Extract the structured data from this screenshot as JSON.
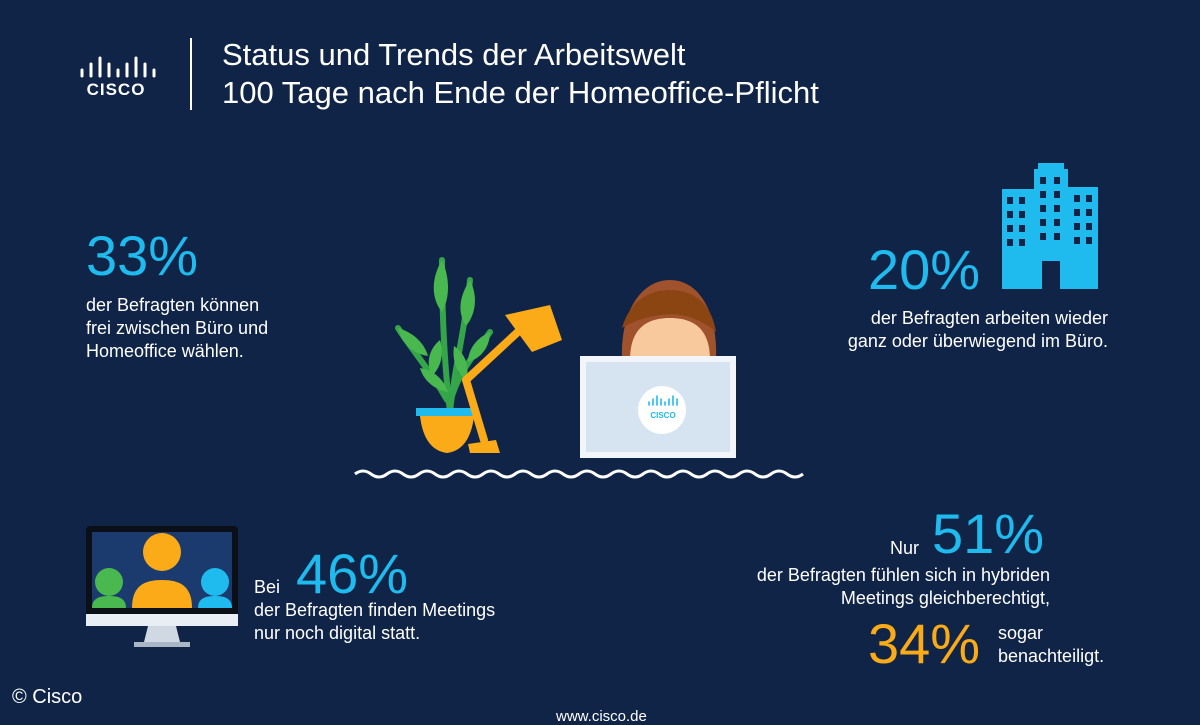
{
  "brand": {
    "logo_text": "CISCO",
    "monitor_logo_text": "CISCO"
  },
  "header": {
    "line1": "Status und Trends der Arbeitswelt",
    "line2": "100 Tage nach Ende der Homeoffice-Pflicht"
  },
  "stats": {
    "s1": {
      "value": "33%",
      "text": [
        "der Befragten können",
        "frei zwischen Büro und",
        "Homeoffice wählen."
      ]
    },
    "s2": {
      "value": "20%",
      "text": [
        "der Befragten arbeiten wieder",
        "ganz oder überwiegend im Büro."
      ]
    },
    "s3": {
      "prefix": "Bei",
      "value": "46%",
      "text": [
        "der Befragten finden Meetings",
        "nur noch digital statt."
      ]
    },
    "s4": {
      "prefix": "Nur",
      "value": "51%",
      "text": [
        "der Befragten fühlen sich in hybriden",
        "Meetings gleichberechtigt,"
      ]
    },
    "s5": {
      "value": "34%",
      "text": [
        "sogar",
        "benachteiligt."
      ]
    }
  },
  "footer": {
    "copyright": "© Cisco",
    "url": "www.cisco.de"
  },
  "colors": {
    "background": "#0f2447",
    "accent_blue": "#1fbbef",
    "accent_orange": "#fbab18"
  },
  "icons": [
    "cisco-logo-icon",
    "plant-icon",
    "desk-lamp-icon",
    "person-icon",
    "laptop-icon",
    "office-building-icon",
    "video-meeting-monitor-icon"
  ]
}
